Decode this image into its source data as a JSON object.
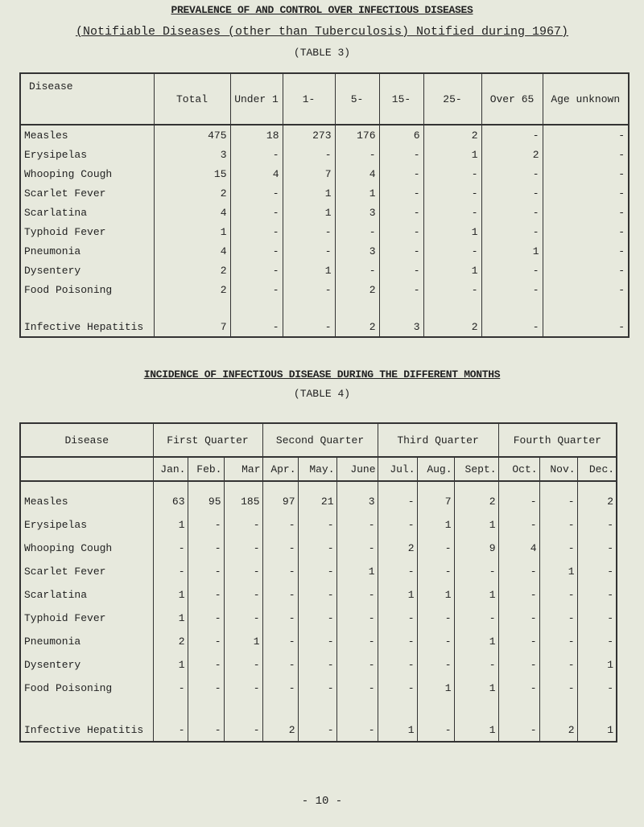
{
  "heading": "PREVALENCE OF AND CONTROL OVER INFECTIOUS DISEASES",
  "subheading": "(Notifiable Diseases (other than Tuberculosis) Notified during 1967)",
  "table3": {
    "label": "(TABLE 3)",
    "columns": [
      "Disease",
      "Total",
      "Under 1",
      "1-",
      "5-",
      "15-",
      "25-",
      "Over 65",
      "Age unknown"
    ],
    "rows": [
      [
        "Measles",
        "475",
        "18",
        "273",
        "176",
        "6",
        "2",
        "-",
        "-"
      ],
      [
        "Erysipelas",
        "3",
        "-",
        "-",
        "-",
        "-",
        "1",
        "2",
        "-"
      ],
      [
        "Whooping Cough",
        "15",
        "4",
        "7",
        "4",
        "-",
        "-",
        "-",
        "-"
      ],
      [
        "Scarlet Fever",
        "2",
        "-",
        "1",
        "1",
        "-",
        "-",
        "-",
        "-"
      ],
      [
        "Scarlatina",
        "4",
        "-",
        "1",
        "3",
        "-",
        "-",
        "-",
        "-"
      ],
      [
        "Typhoid Fever",
        "1",
        "-",
        "-",
        "-",
        "-",
        "1",
        "-",
        "-"
      ],
      [
        "Pneumonia",
        "4",
        "-",
        "-",
        "3",
        "-",
        "-",
        "1",
        "-"
      ],
      [
        "Dysentery",
        "2",
        "-",
        "1",
        "-",
        "-",
        "1",
        "-",
        "-"
      ],
      [
        "Food Poisoning",
        "2",
        "-",
        "-",
        "2",
        "-",
        "-",
        "-",
        "-"
      ],
      [
        "Infective Hepatitis",
        "7",
        "-",
        "-",
        "2",
        "3",
        "2",
        "-",
        "-"
      ]
    ]
  },
  "table4": {
    "title": "INCIDENCE OF INFECTIOUS DISEASE DURING THE DIFFERENT MONTHS",
    "label": "(TABLE 4)",
    "disease_header": "Disease",
    "quarters": [
      "First Quarter",
      "Second Quarter",
      "Third Quarter",
      "Fourth Quarter"
    ],
    "months": [
      "Jan.",
      "Feb.",
      "Mar",
      "Apr.",
      "May.",
      "June",
      "Jul.",
      "Aug.",
      "Sept.",
      "Oct.",
      "Nov.",
      "Dec."
    ],
    "rows": [
      [
        "Measles",
        "63",
        "95",
        "185",
        "97",
        "21",
        "3",
        "-",
        "7",
        "2",
        "-",
        "-",
        "2"
      ],
      [
        "Erysipelas",
        "1",
        "-",
        "-",
        "-",
        "-",
        "-",
        "-",
        "1",
        "1",
        "-",
        "-",
        "-"
      ],
      [
        "Whooping Cough",
        "-",
        "-",
        "-",
        "-",
        "-",
        "-",
        "2",
        "-",
        "9",
        "4",
        "-",
        "-"
      ],
      [
        "Scarlet Fever",
        "-",
        "-",
        "-",
        "-",
        "-",
        "1",
        "-",
        "-",
        "-",
        "-",
        "1",
        "-"
      ],
      [
        "Scarlatina",
        "1",
        "-",
        "-",
        "-",
        "-",
        "-",
        "1",
        "1",
        "1",
        "-",
        "-",
        "-"
      ],
      [
        "Typhoid Fever",
        "1",
        "-",
        "-",
        "-",
        "-",
        "-",
        "-",
        "-",
        "-",
        "-",
        "-",
        "-"
      ],
      [
        "Pneumonia",
        "2",
        "-",
        "1",
        "-",
        "-",
        "-",
        "-",
        "-",
        "1",
        "-",
        "-",
        "-"
      ],
      [
        "Dysentery",
        "1",
        "-",
        "-",
        "-",
        "-",
        "-",
        "-",
        "-",
        "-",
        "-",
        "-",
        "1"
      ],
      [
        "Food Poisoning",
        "-",
        "-",
        "-",
        "-",
        "-",
        "-",
        "-",
        "1",
        "1",
        "-",
        "-",
        "-"
      ],
      [
        "Infective Hepatitis",
        "-",
        "-",
        "-",
        "2",
        "-",
        "-",
        "1",
        "-",
        "1",
        "-",
        "2",
        "1"
      ]
    ]
  },
  "page_number": "- 10 -"
}
